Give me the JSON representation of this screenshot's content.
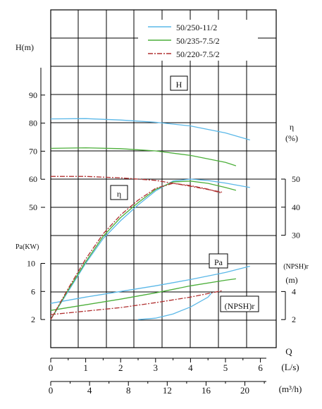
{
  "chart_data": {
    "type": "line",
    "legend": {
      "placement": "top-right",
      "entries": [
        {
          "name": "50/250-11/2",
          "color": "#5bb8e8",
          "dash": "solid"
        },
        {
          "name": "50/235-7.5/2",
          "color": "#4caf3a",
          "dash": "solid"
        },
        {
          "name": "50/220-7.5/2",
          "color": "#b03030",
          "dash": "dashdot"
        }
      ]
    },
    "x_axis": {
      "label_q": "Q",
      "unit_ls": "(L/s)",
      "unit_m3h": "(m³/h)",
      "ticks_ls": [
        "0",
        "1",
        "2",
        "3",
        "4",
        "5",
        "6"
      ],
      "ticks_m3h": [
        "0",
        "4",
        "8",
        "12",
        "16",
        "20"
      ],
      "range_ls": [
        0,
        6.5
      ]
    },
    "h_axis": {
      "label": "H(m)",
      "range": [
        0,
        110
      ],
      "ticks": [
        "50",
        "60",
        "70",
        "80",
        "90"
      ],
      "tick_values": [
        50,
        60,
        70,
        80,
        90
      ]
    },
    "eta_axis": {
      "label": "η",
      "unit": "(%)",
      "ticks": [
        "30",
        "40",
        "50"
      ],
      "tick_values": [
        30,
        40,
        50
      ]
    },
    "pa_axis": {
      "label": "Pa(KW)",
      "ticks": [
        "2",
        "6",
        "10"
      ],
      "tick_values": [
        2,
        6,
        10
      ]
    },
    "npsh_axis": {
      "label": "(NPSH)r",
      "unit": "(m)",
      "ticks": [
        "2",
        "4"
      ],
      "tick_values": [
        2,
        4
      ]
    },
    "curve_labels": {
      "h": "H",
      "eta": "η",
      "pa": "Pa",
      "npsh": "(NPSH)r"
    },
    "series": [
      {
        "name": "50/250-11/2",
        "color": "#5bb8e8",
        "H": {
          "x": [
            0,
            1,
            2,
            3,
            4,
            5,
            5.7
          ],
          "y": [
            81.5,
            81.6,
            81.1,
            80.3,
            79.0,
            76.5,
            74
          ]
        },
        "eta": {
          "x": [
            0,
            0.5,
            1,
            1.5,
            2,
            2.5,
            3,
            3.5,
            4,
            4.5,
            5,
            5.7
          ],
          "y": [
            0,
            10,
            20,
            28.8,
            35.2,
            40.8,
            45.8,
            49.3,
            50,
            49.5,
            48.6,
            47
          ]
        },
        "Pa": {
          "x": [
            0,
            1,
            2,
            3,
            4,
            5,
            5.7
          ],
          "y": [
            4.3,
            5.2,
            6.0,
            6.8,
            7.7,
            8.7,
            9.6
          ]
        },
        "NPSH": {
          "x": [
            2.5,
            3,
            3.5,
            4,
            4.5,
            4.6
          ],
          "y": [
            2.0,
            2.1,
            2.4,
            2.9,
            3.6,
            3.9
          ]
        }
      },
      {
        "name": "50/235-7.5/2",
        "color": "#4caf3a",
        "H": {
          "x": [
            0,
            1,
            2,
            3,
            4,
            5,
            5.3
          ],
          "y": [
            71.0,
            71.2,
            70.9,
            70.1,
            68.5,
            66,
            64.8
          ]
        },
        "eta": {
          "x": [
            0,
            0.5,
            1,
            1.5,
            2,
            2.5,
            3,
            3.5,
            4,
            4.5,
            5,
            5.3
          ],
          "y": [
            0,
            10.5,
            20.5,
            29.6,
            36.3,
            41.6,
            46.3,
            49,
            49.3,
            48.5,
            47,
            46
          ]
        },
        "Pa": {
          "x": [
            0,
            1,
            2,
            3,
            4,
            5,
            5.3
          ],
          "y": [
            3.3,
            4.1,
            4.9,
            5.8,
            6.8,
            7.6,
            7.8
          ]
        }
      },
      {
        "name": "50/220-7.5/2",
        "color": "#b03030",
        "H": {
          "x": [
            0,
            1,
            2,
            3,
            4,
            4.9
          ],
          "y": [
            61.0,
            61.0,
            60.5,
            59.6,
            57.5,
            55.4
          ]
        },
        "eta": {
          "x": [
            0,
            0.5,
            1,
            1.5,
            2,
            2.5,
            3,
            3.5,
            4,
            4.5,
            4.9
          ],
          "y": [
            0,
            11,
            21.5,
            30.5,
            37.2,
            42.5,
            46.7,
            48.5,
            47.7,
            46.4,
            45
          ]
        },
        "Pa": {
          "x": [
            0,
            1,
            2,
            3,
            4,
            4.9
          ],
          "y": [
            2.7,
            3.2,
            3.7,
            4.4,
            5.2,
            6.1
          ]
        }
      }
    ]
  }
}
